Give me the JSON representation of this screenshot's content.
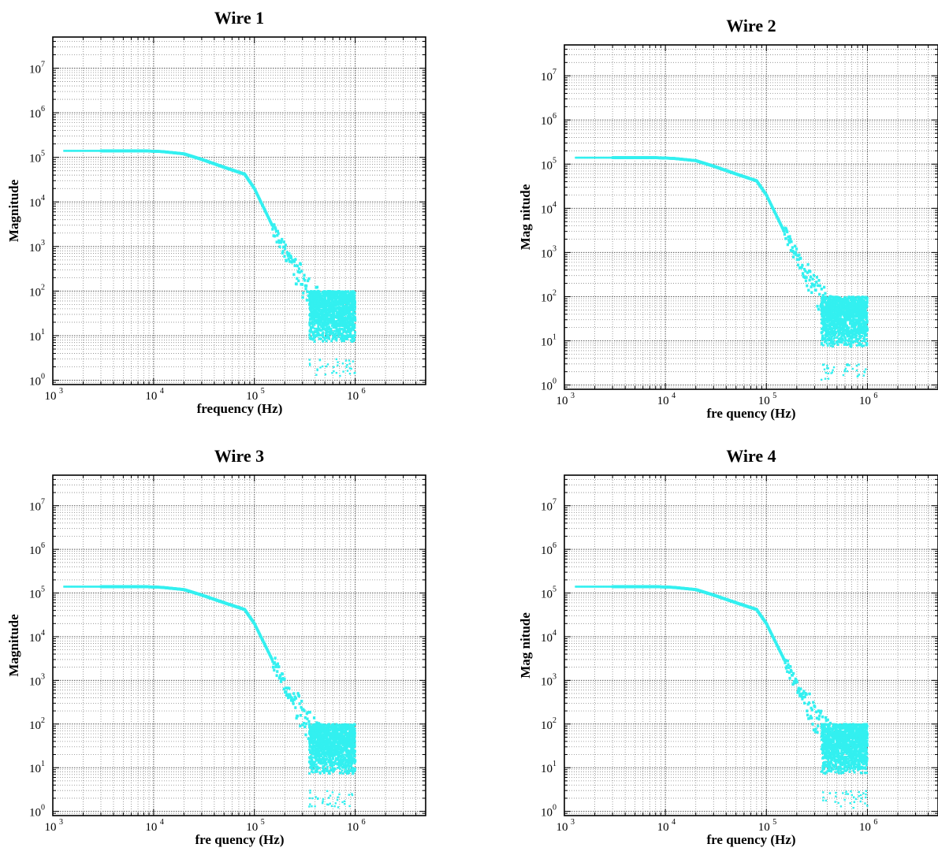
{
  "chart_data": [
    {
      "type": "scatter",
      "title": "Wire 1",
      "xlabel": "frequency (Hz)",
      "ylabel": "Magnitude",
      "xscale": "log",
      "yscale": "log",
      "xlim": [
        1000,
        5000000
      ],
      "ylim": [
        0.8,
        50000000
      ],
      "grid": true,
      "marker_color": "#33f0f0",
      "x_ticks": [
        {
          "base": "10",
          "exp": "3",
          "value": 1000
        },
        {
          "base": "10",
          "exp": "4",
          "value": 10000
        },
        {
          "base": "10",
          "exp": "5",
          "value": 100000
        },
        {
          "base": "10",
          "exp": "6",
          "value": 1000000
        }
      ],
      "y_ticks": [
        {
          "base": "10",
          "exp": "0",
          "value": 1
        },
        {
          "base": "10",
          "exp": "1",
          "value": 10
        },
        {
          "base": "10",
          "exp": "2",
          "value": 100
        },
        {
          "base": "10",
          "exp": "3",
          "value": 1000
        },
        {
          "base": "10",
          "exp": "4",
          "value": 10000
        },
        {
          "base": "10",
          "exp": "5",
          "value": 100000
        },
        {
          "base": "10",
          "exp": "6",
          "value": 1000000
        },
        {
          "base": "10",
          "exp": "7",
          "value": 10000000
        }
      ],
      "x": [
        1300,
        2000,
        3000,
        5000,
        8000,
        12000,
        20000,
        30000,
        50000,
        80000,
        100000,
        150000,
        200000,
        300000,
        400000,
        500000,
        700000,
        1000000
      ],
      "y": [
        140000,
        140000,
        140000,
        140000,
        140000,
        135000,
        120000,
        90000,
        60000,
        42000,
        20000,
        3000,
        800,
        150,
        60,
        40,
        35,
        30
      ],
      "noise_band": {
        "x_range": [
          350000,
          1000000
        ],
        "y_range": [
          3,
          100
        ]
      }
    },
    {
      "type": "scatter",
      "title": "Wire 2",
      "xlabel": "fre quency (Hz)",
      "ylabel": "Mag nitude",
      "xscale": "log",
      "yscale": "log",
      "xlim": [
        1000,
        5000000
      ],
      "ylim": [
        0.8,
        50000000
      ],
      "grid": true,
      "marker_color": "#33f0f0",
      "x_ticks": [
        {
          "base": "10",
          "exp": "3",
          "value": 1000
        },
        {
          "base": "10",
          "exp": "4",
          "value": 10000
        },
        {
          "base": "10",
          "exp": "5",
          "value": 100000
        },
        {
          "base": "10",
          "exp": "6",
          "value": 1000000
        }
      ],
      "y_ticks": [
        {
          "base": "10",
          "exp": "0",
          "value": 1
        },
        {
          "base": "10",
          "exp": "1",
          "value": 10
        },
        {
          "base": "10",
          "exp": "2",
          "value": 100
        },
        {
          "base": "10",
          "exp": "3",
          "value": 1000
        },
        {
          "base": "10",
          "exp": "4",
          "value": 10000
        },
        {
          "base": "10",
          "exp": "5",
          "value": 100000
        },
        {
          "base": "10",
          "exp": "6",
          "value": 1000000
        },
        {
          "base": "10",
          "exp": "7",
          "value": 10000000
        }
      ],
      "x": [
        1300,
        2000,
        3000,
        5000,
        8000,
        12000,
        20000,
        30000,
        50000,
        80000,
        100000,
        150000,
        200000,
        300000,
        400000,
        500000,
        700000,
        1000000
      ],
      "y": [
        140000,
        140000,
        140000,
        140000,
        140000,
        135000,
        120000,
        90000,
        60000,
        42000,
        20000,
        3000,
        800,
        150,
        60,
        40,
        35,
        30
      ],
      "noise_band": {
        "x_range": [
          350000,
          1000000
        ],
        "y_range": [
          3,
          100
        ]
      }
    },
    {
      "type": "scatter",
      "title": "Wire 3",
      "xlabel": "fre quency (Hz)",
      "ylabel": "Magnitude",
      "xscale": "log",
      "yscale": "log",
      "xlim": [
        1000,
        5000000
      ],
      "ylim": [
        0.8,
        50000000
      ],
      "grid": true,
      "marker_color": "#33f0f0",
      "x_ticks": [
        {
          "base": "10",
          "exp": "3",
          "value": 1000
        },
        {
          "base": "10",
          "exp": "4",
          "value": 10000
        },
        {
          "base": "10",
          "exp": "5",
          "value": 100000
        },
        {
          "base": "10",
          "exp": "6",
          "value": 1000000
        }
      ],
      "y_ticks": [
        {
          "base": "10",
          "exp": "0",
          "value": 1
        },
        {
          "base": "10",
          "exp": "1",
          "value": 10
        },
        {
          "base": "10",
          "exp": "2",
          "value": 100
        },
        {
          "base": "10",
          "exp": "3",
          "value": 1000
        },
        {
          "base": "10",
          "exp": "4",
          "value": 10000
        },
        {
          "base": "10",
          "exp": "5",
          "value": 100000
        },
        {
          "base": "10",
          "exp": "6",
          "value": 1000000
        },
        {
          "base": "10",
          "exp": "7",
          "value": 10000000
        }
      ],
      "x": [
        1300,
        2000,
        3000,
        5000,
        8000,
        12000,
        20000,
        30000,
        50000,
        80000,
        100000,
        150000,
        200000,
        300000,
        400000,
        500000,
        700000,
        1000000
      ],
      "y": [
        140000,
        140000,
        140000,
        140000,
        140000,
        135000,
        120000,
        90000,
        60000,
        42000,
        20000,
        3000,
        800,
        150,
        60,
        40,
        35,
        30
      ],
      "noise_band": {
        "x_range": [
          350000,
          1000000
        ],
        "y_range": [
          3,
          100
        ]
      }
    },
    {
      "type": "scatter",
      "title": "Wire 4",
      "xlabel": "fre quency (Hz)",
      "ylabel": "Mag nitude",
      "xscale": "log",
      "yscale": "log",
      "xlim": [
        1000,
        5000000
      ],
      "ylim": [
        0.8,
        50000000
      ],
      "grid": true,
      "marker_color": "#33f0f0",
      "x_ticks": [
        {
          "base": "10",
          "exp": "3",
          "value": 1000
        },
        {
          "base": "10",
          "exp": "4",
          "value": 10000
        },
        {
          "base": "10",
          "exp": "5",
          "value": 100000
        },
        {
          "base": "10",
          "exp": "6",
          "value": 1000000
        }
      ],
      "y_ticks": [
        {
          "base": "10",
          "exp": "0",
          "value": 1
        },
        {
          "base": "10",
          "exp": "1",
          "value": 10
        },
        {
          "base": "10",
          "exp": "2",
          "value": 100
        },
        {
          "base": "10",
          "exp": "3",
          "value": 1000
        },
        {
          "base": "10",
          "exp": "4",
          "value": 10000
        },
        {
          "base": "10",
          "exp": "5",
          "value": 100000
        },
        {
          "base": "10",
          "exp": "6",
          "value": 1000000
        },
        {
          "base": "10",
          "exp": "7",
          "value": 10000000
        }
      ],
      "x": [
        1300,
        2000,
        3000,
        5000,
        8000,
        12000,
        20000,
        30000,
        50000,
        80000,
        100000,
        150000,
        200000,
        300000,
        400000,
        500000,
        700000,
        1000000
      ],
      "y": [
        140000,
        140000,
        140000,
        140000,
        140000,
        135000,
        120000,
        90000,
        60000,
        42000,
        20000,
        3000,
        800,
        150,
        60,
        40,
        35,
        30
      ],
      "noise_band": {
        "x_range": [
          350000,
          1000000
        ],
        "y_range": [
          3,
          100
        ]
      }
    }
  ]
}
